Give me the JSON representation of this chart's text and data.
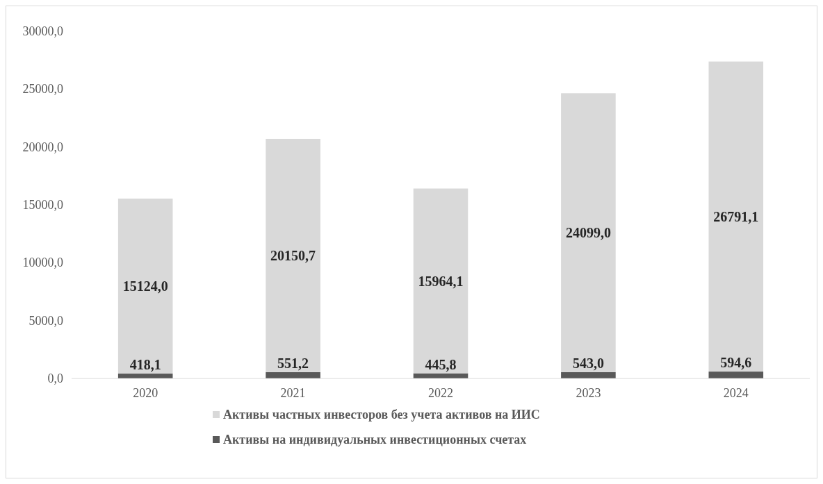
{
  "chart_data": {
    "type": "bar",
    "stacked": true,
    "categories": [
      "2020",
      "2021",
      "2022",
      "2023",
      "2024"
    ],
    "series": [
      {
        "name": "Активы на индивидуальных инвестиционных счетах",
        "color": "#595959",
        "values": [
          418.1,
          551.2,
          445.8,
          543.0,
          594.6
        ],
        "value_labels": [
          "418,1",
          "551,2",
          "445,8",
          "543,0",
          "594,6"
        ]
      },
      {
        "name": "Активы частных инвесторов без учета активов на ИИС",
        "color": "#d9d9d9",
        "values": [
          15124.0,
          20150.7,
          15964.1,
          24099.0,
          26791.1
        ],
        "value_labels": [
          "15124,0",
          "20150,7",
          "15964,1",
          "24099,0",
          "26791,1"
        ]
      }
    ],
    "ylim": [
      0,
      30000
    ],
    "yticks": [
      {
        "value": 0,
        "label": "0,0"
      },
      {
        "value": 5000,
        "label": "5000,0"
      },
      {
        "value": 10000,
        "label": "10000,0"
      },
      {
        "value": 15000,
        "label": "15000,0"
      },
      {
        "value": 20000,
        "label": "20000,0"
      },
      {
        "value": 25000,
        "label": "25000,0"
      },
      {
        "value": 30000,
        "label": "30000,0"
      }
    ],
    "legend": "bottom"
  }
}
